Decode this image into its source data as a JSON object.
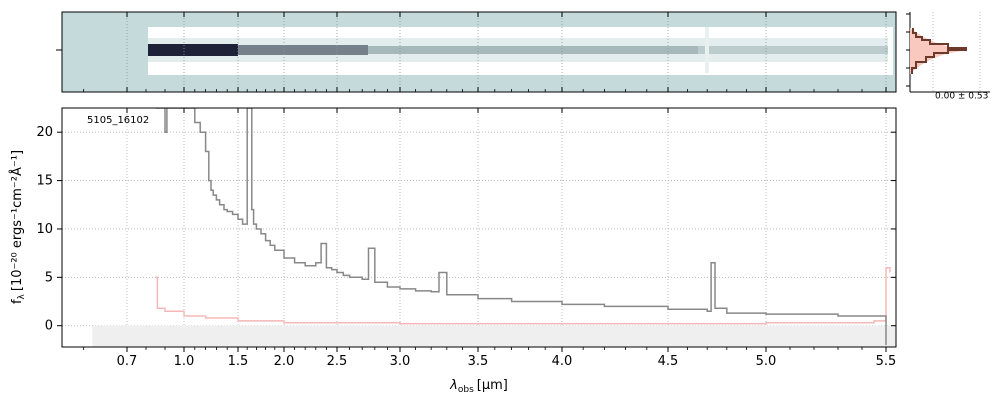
{
  "chart_data": [
    {
      "type": "heatmap",
      "panel": "2d-spectrum",
      "description_colormap": [
        "#c5dada",
        "#ffffff",
        "#1a1a33"
      ],
      "x_axis": "shared with spectrum panel",
      "grid": true
    },
    {
      "type": "line",
      "panel": "1d-spectrum",
      "object_label": "5105_16102",
      "xlabel_main": "λ",
      "xlabel_sub": "obs",
      "xlabel_unit": "[μm]",
      "ylabel_main": "f",
      "ylabel_sub": "λ",
      "ylabel_unit": "[10⁻²⁰ ergs⁻¹cm⁻²Å⁻¹]",
      "x_ticks": [
        0.7,
        1.0,
        1.5,
        2.0,
        2.5,
        3.0,
        3.5,
        4.0,
        4.5,
        5.0,
        5.5
      ],
      "x_tick_labels": [
        "0.7",
        "1.0",
        "1.5",
        "2.0",
        "2.5",
        "3.0",
        "3.5",
        "4.0",
        "4.5",
        "5.0",
        "5.5"
      ],
      "y_ticks": [
        0,
        5,
        10,
        15,
        20
      ],
      "y_tick_labels": [
        "0",
        "5",
        "10",
        "15",
        "20"
      ],
      "xlim": [
        0.55,
        5.55
      ],
      "ylim": [
        -2.2,
        22.5
      ],
      "grid": true,
      "colors": {
        "flux": "#888888",
        "error": "#f5b8b8",
        "background": "#efefef"
      },
      "series": [
        {
          "role": "flux",
          "x": [
            0.85,
            0.87,
            0.89,
            0.9,
            0.91,
            0.95,
            0.98,
            1.02,
            1.05,
            1.1,
            1.15,
            1.2,
            1.23,
            1.25,
            1.27,
            1.3,
            1.33,
            1.37,
            1.4,
            1.45,
            1.5,
            1.55,
            1.6,
            1.63,
            1.65,
            1.67,
            1.7,
            1.75,
            1.8,
            1.85,
            1.9,
            2.0,
            2.1,
            2.2,
            2.3,
            2.35,
            2.4,
            2.45,
            2.5,
            2.55,
            2.6,
            2.7,
            2.75,
            2.8,
            2.9,
            3.0,
            3.1,
            3.2,
            3.25,
            3.3,
            3.5,
            3.7,
            4.0,
            4.2,
            4.5,
            4.7,
            4.72,
            4.74,
            4.8,
            5.0,
            5.3,
            5.45,
            5.5
          ],
          "y": [
            22.5,
            22.5,
            22.5,
            20.0,
            22.5,
            22.5,
            22.5,
            22.5,
            22.5,
            21.0,
            20.0,
            18.0,
            15.0,
            14.0,
            13.5,
            13.0,
            12.5,
            12.0,
            11.8,
            11.5,
            11.0,
            10.5,
            22.5,
            22.5,
            12.0,
            10.5,
            10.0,
            9.5,
            8.8,
            8.3,
            7.8,
            7.0,
            6.5,
            6.2,
            6.5,
            8.5,
            6.0,
            5.8,
            5.5,
            5.2,
            5.0,
            4.8,
            8.0,
            4.5,
            4.0,
            3.8,
            3.6,
            3.5,
            5.5,
            3.2,
            2.8,
            2.5,
            2.2,
            2.0,
            1.7,
            1.5,
            6.5,
            1.8,
            1.3,
            1.2,
            1.0,
            1.0,
            -2.0
          ]
        },
        {
          "role": "error",
          "x": [
            0.85,
            0.86,
            0.9,
            1.0,
            1.2,
            1.5,
            2.0,
            3.0,
            4.0,
            5.0,
            5.45,
            5.5,
            5.52
          ],
          "y": [
            5.0,
            1.8,
            1.5,
            1.0,
            0.8,
            0.5,
            0.3,
            0.2,
            0.2,
            0.3,
            0.5,
            6.0,
            5.5
          ]
        }
      ]
    },
    {
      "type": "bar",
      "panel": "residual-histogram",
      "label": "0.00 ± 0.53",
      "colors": {
        "gaussian": "#f9c9c0",
        "histogram": "#6b3a2a"
      }
    }
  ]
}
